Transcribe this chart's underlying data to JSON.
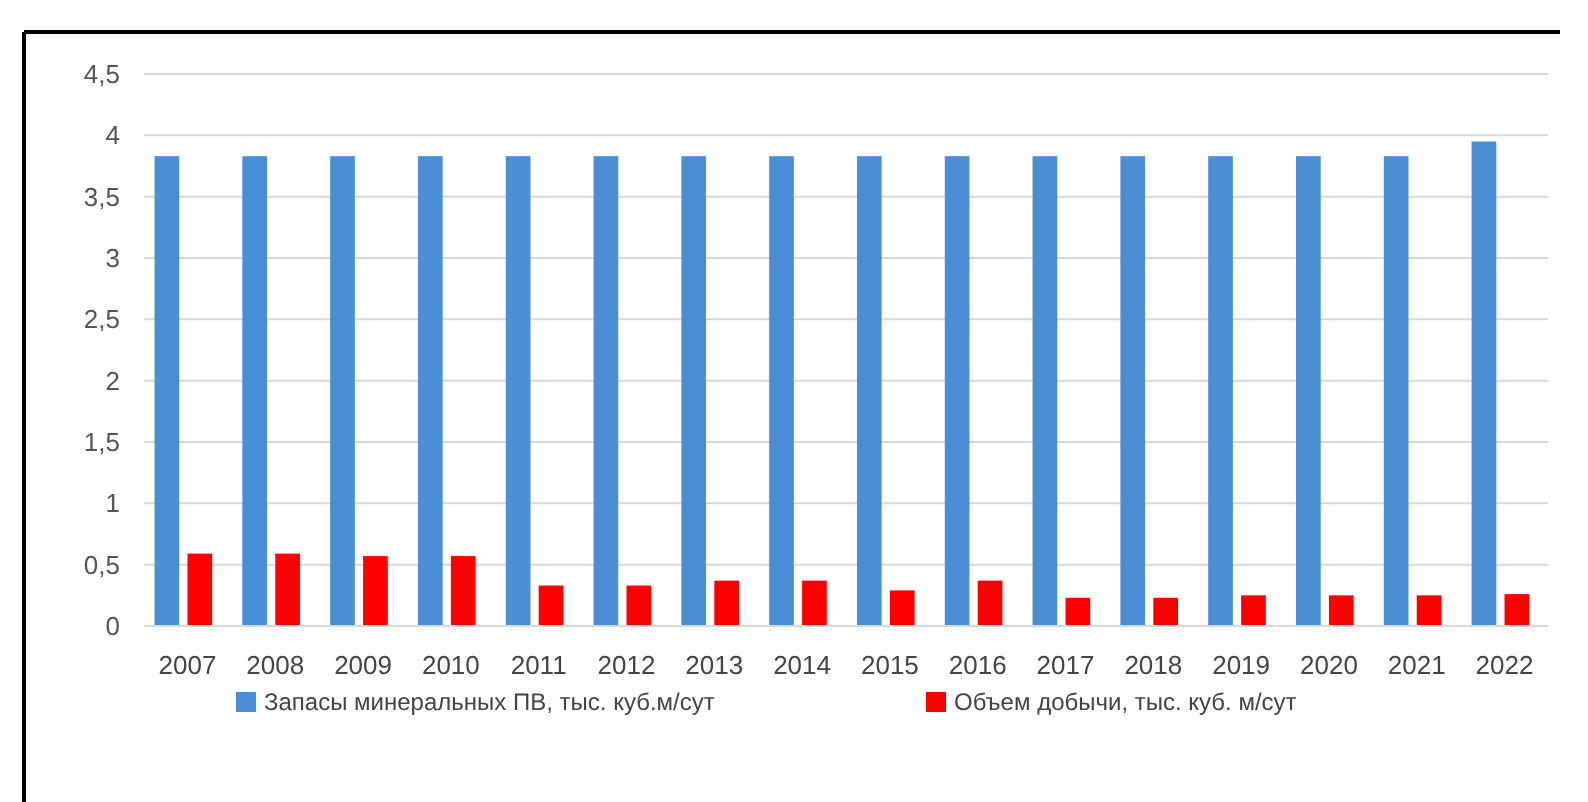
{
  "chart_data": {
    "type": "bar",
    "categories": [
      "2007",
      "2008",
      "2009",
      "2010",
      "2011",
      "2012",
      "2013",
      "2014",
      "2015",
      "2016",
      "2017",
      "2018",
      "2019",
      "2020",
      "2021",
      "2022"
    ],
    "series": [
      {
        "name": "Запасы минеральных ПВ, тыс. куб.м/сут",
        "color": "#4a8fd6",
        "values": [
          3.83,
          3.83,
          3.83,
          3.83,
          3.83,
          3.83,
          3.83,
          3.83,
          3.83,
          3.83,
          3.83,
          3.83,
          3.83,
          3.83,
          3.83,
          3.95
        ]
      },
      {
        "name": "Объем добычи, тыс. куб. м/сут",
        "color": "#ff0000",
        "values": [
          0.59,
          0.59,
          0.57,
          0.57,
          0.33,
          0.33,
          0.37,
          0.37,
          0.29,
          0.37,
          0.23,
          0.23,
          0.25,
          0.25,
          0.25,
          0.26
        ]
      }
    ],
    "ylim": [
      0,
      4.5
    ],
    "yticks": [
      0,
      {
        "value": 0.5,
        "label": "0,5"
      },
      1,
      {
        "value": 1.5,
        "label": "1,5"
      },
      2,
      {
        "value": 2.5,
        "label": "2,5"
      },
      3,
      {
        "value": 3.5,
        "label": "3,5"
      },
      4,
      {
        "value": 4.5,
        "label": "4,5"
      }
    ],
    "grid": "y",
    "legend": "bottom"
  }
}
